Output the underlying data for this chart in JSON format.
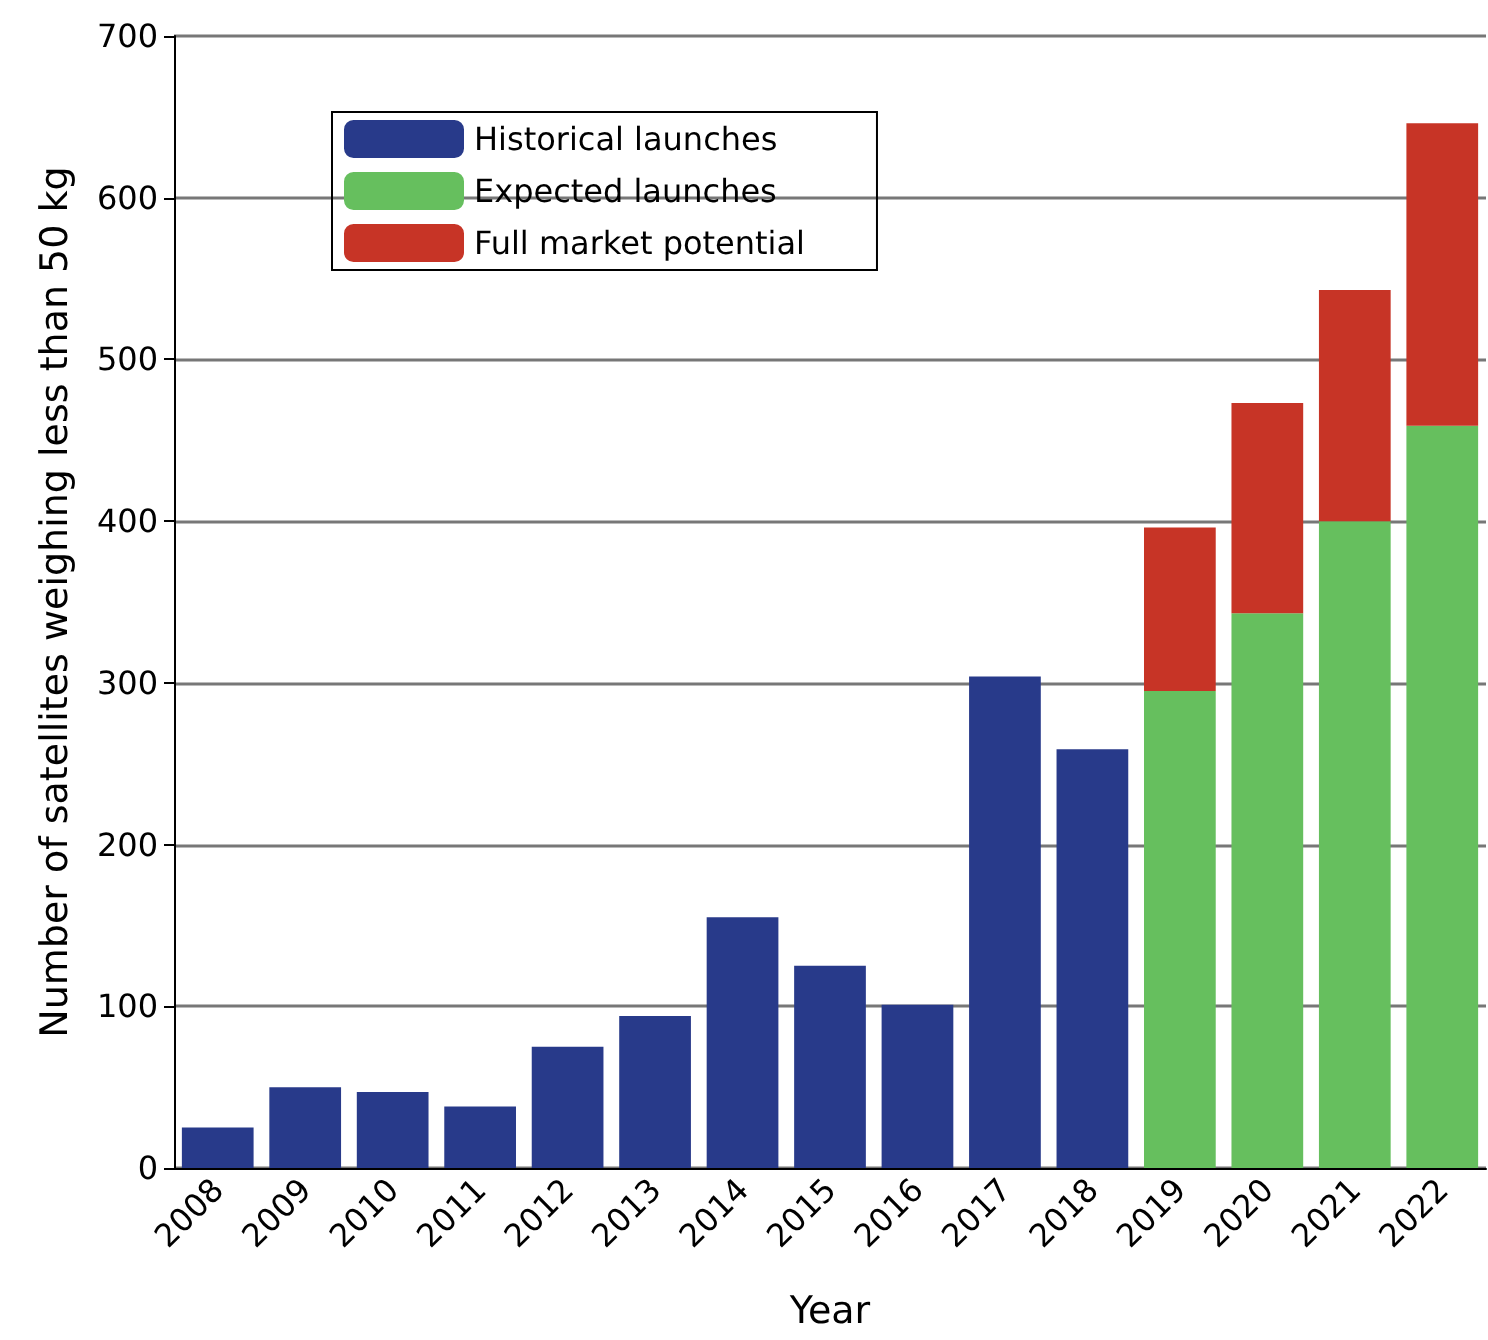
{
  "chart_data": {
    "type": "bar",
    "stacked": true,
    "xlabel": "Year",
    "ylabel": "Number of satellites weighing less than 50 kg",
    "categories": [
      "2008",
      "2009",
      "2010",
      "2011",
      "2012",
      "2013",
      "2014",
      "2015",
      "2016",
      "2017",
      "2018",
      "2019",
      "2020",
      "2021",
      "2022"
    ],
    "series": [
      {
        "name": "Historical launches",
        "color": "#283a8a",
        "values": [
          25,
          50,
          47,
          38,
          75,
          94,
          155,
          125,
          101,
          304,
          259,
          null,
          null,
          null,
          null
        ]
      },
      {
        "name": "Expected launches",
        "color": "#66bf5e",
        "values": [
          null,
          null,
          null,
          null,
          null,
          null,
          null,
          null,
          null,
          null,
          null,
          295,
          343,
          400,
          459
        ]
      },
      {
        "name": "Full market potential",
        "color": "#c73426",
        "values": [
          null,
          null,
          null,
          null,
          null,
          null,
          null,
          null,
          null,
          null,
          null,
          101,
          130,
          143,
          187
        ]
      }
    ],
    "ylim": [
      0,
      700
    ],
    "yticks": [
      0,
      100,
      200,
      300,
      400,
      500,
      600,
      700
    ],
    "grid": "y",
    "legend": "top left"
  }
}
